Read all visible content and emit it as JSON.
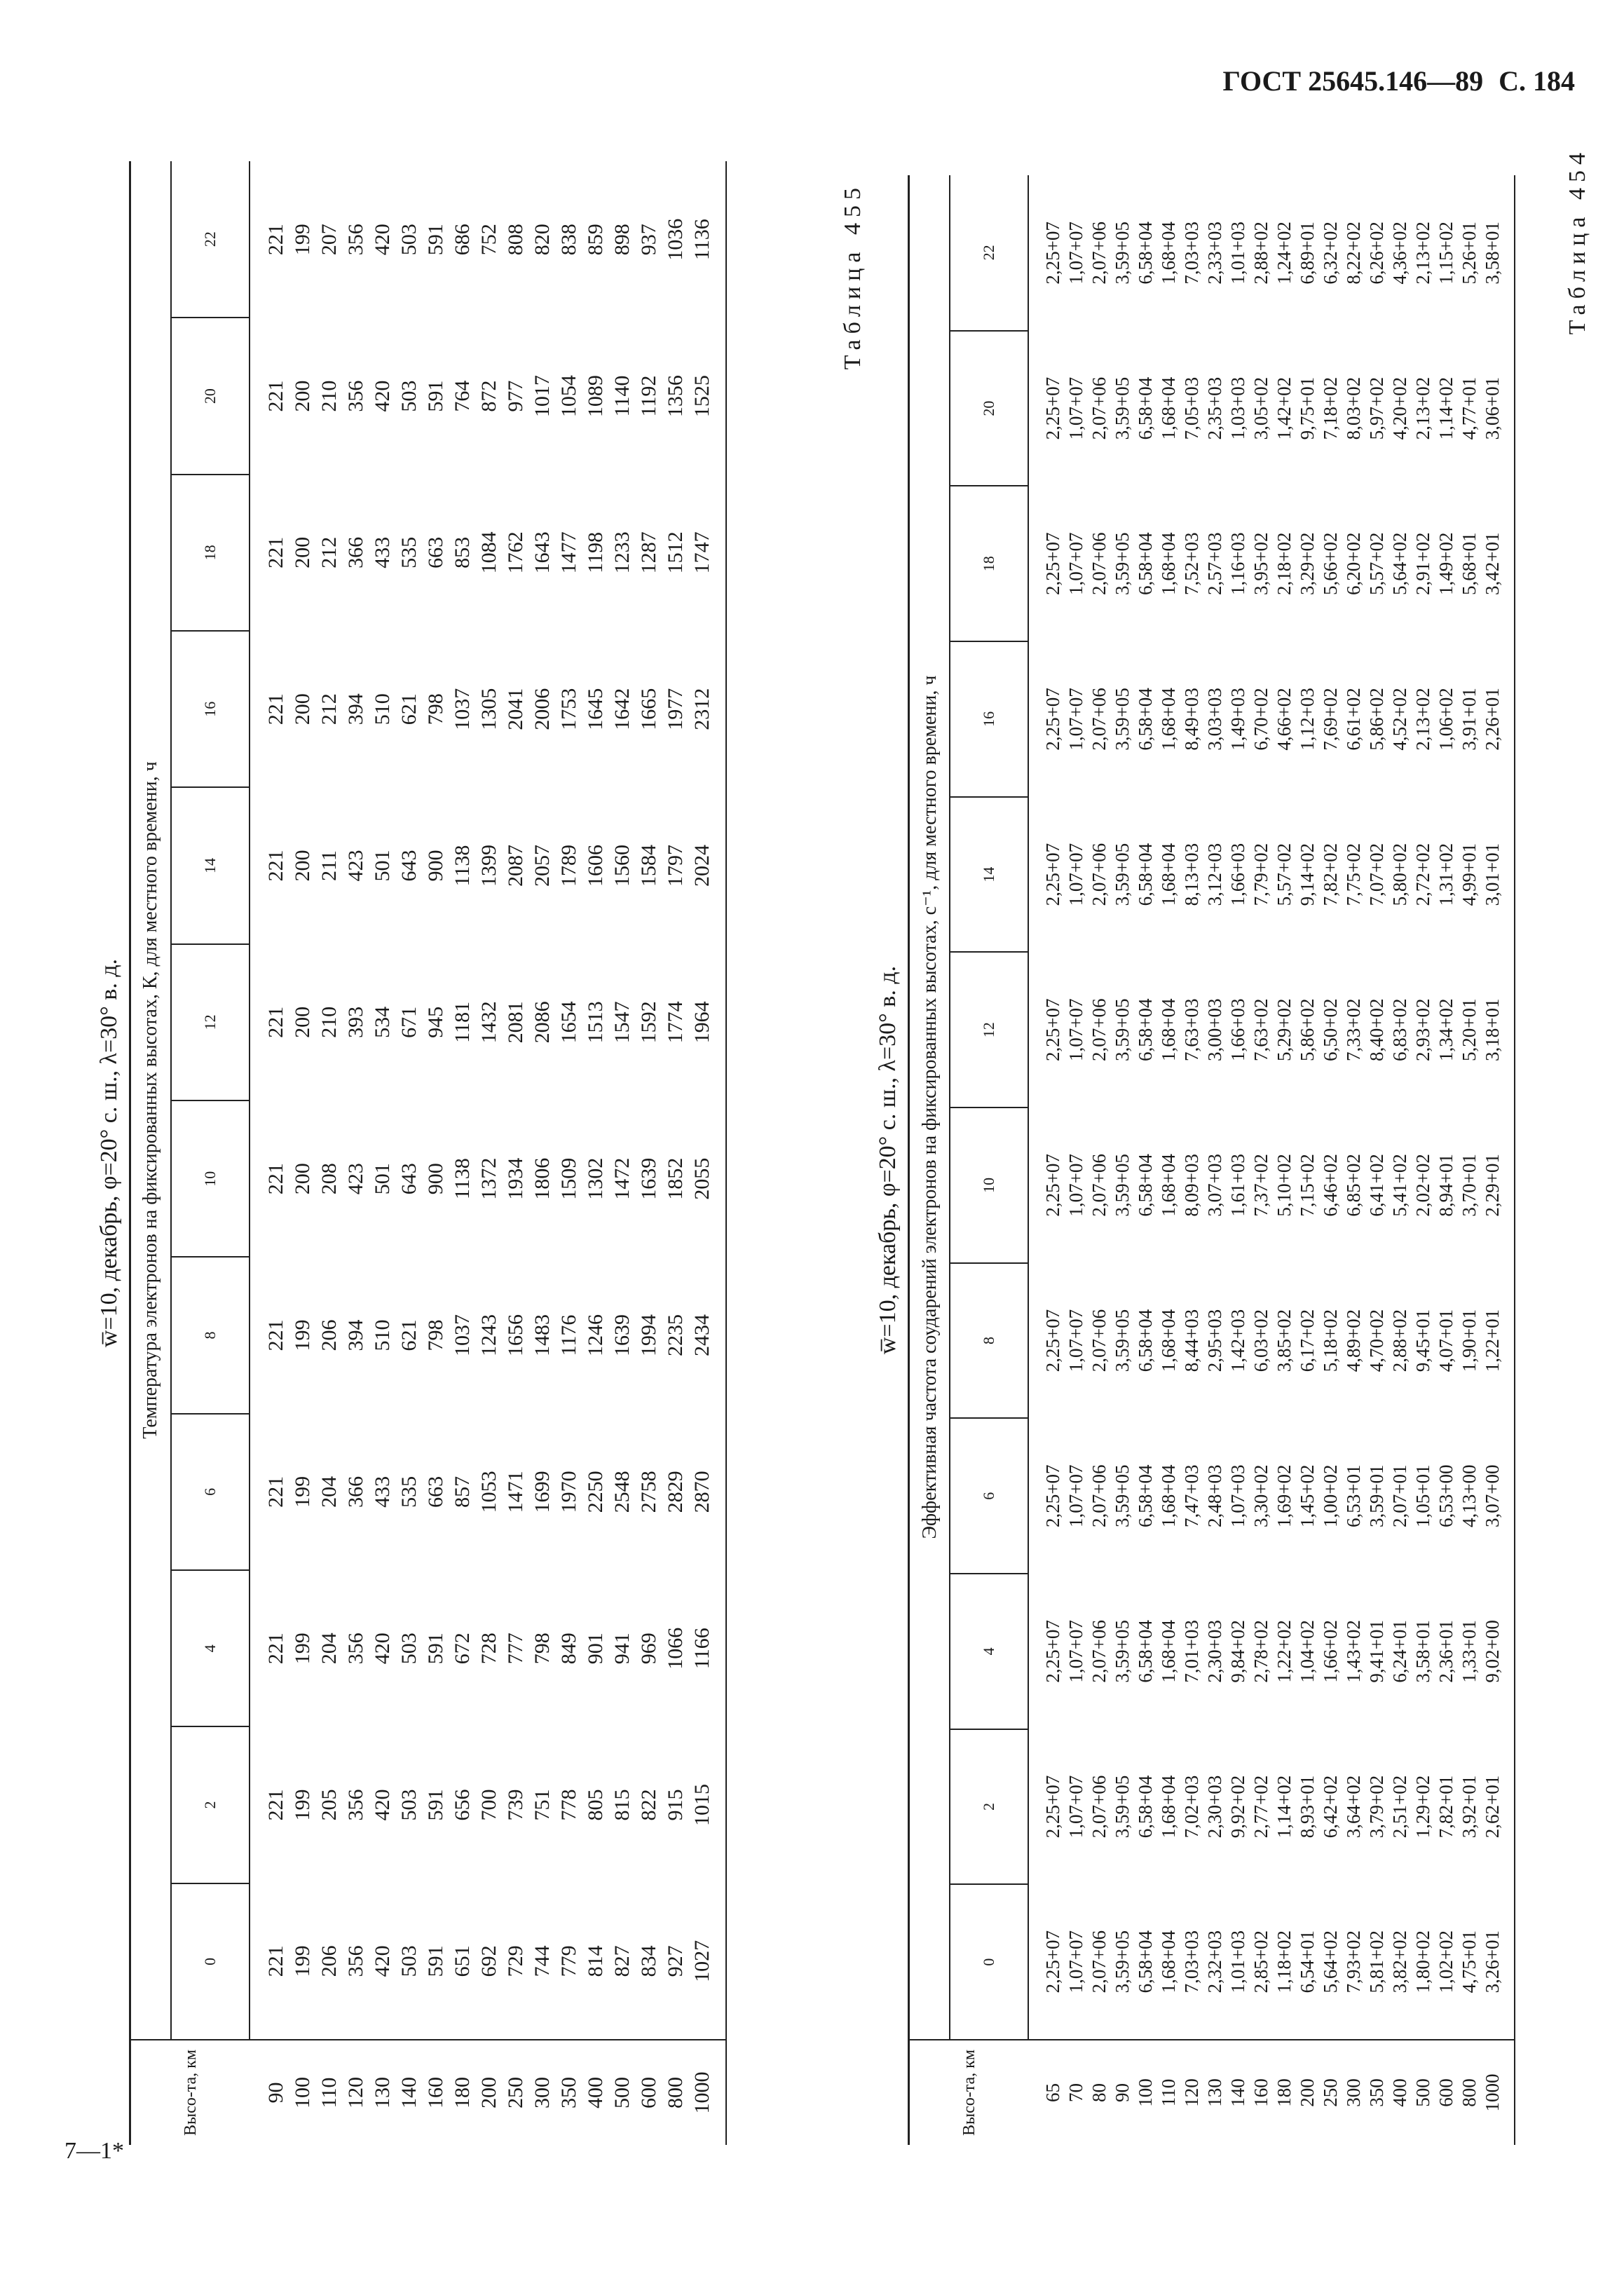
{
  "header": {
    "standard": "ГОСТ 25645.146—89",
    "page": "С. 184"
  },
  "footer": "7—1*",
  "tables": [
    {
      "label": "Таблица 454",
      "title": "w̅=10, декабрь, φ=20° с. ш., λ=30° в. д.",
      "row_header": "Высо-та, км",
      "column_group": "Температура электронов на фиксированных высотах, К, для местного времени, ч",
      "heights": [
        "90",
        "100",
        "110",
        "120",
        "130",
        "140",
        "160",
        "180",
        "200",
        "250",
        "300",
        "350",
        "400",
        "500",
        "600",
        "800",
        "1000"
      ],
      "columns": [
        {
          "hour": "0",
          "values": [
            221,
            199,
            206,
            356,
            420,
            503,
            591,
            651,
            692,
            729,
            744,
            779,
            814,
            827,
            834,
            927,
            1027
          ]
        },
        {
          "hour": "2",
          "values": [
            221,
            199,
            205,
            356,
            420,
            503,
            591,
            656,
            700,
            739,
            751,
            778,
            805,
            815,
            822,
            915,
            1015
          ]
        },
        {
          "hour": "4",
          "values": [
            221,
            199,
            204,
            356,
            420,
            503,
            591,
            672,
            728,
            777,
            798,
            849,
            901,
            941,
            969,
            1066,
            1166
          ]
        },
        {
          "hour": "6",
          "values": [
            221,
            199,
            204,
            366,
            433,
            535,
            663,
            857,
            1053,
            1471,
            1699,
            1970,
            2250,
            2548,
            2758,
            2829,
            2870
          ]
        },
        {
          "hour": "8",
          "values": [
            221,
            199,
            206,
            394,
            510,
            621,
            798,
            1037,
            1243,
            1656,
            1483,
            1176,
            1246,
            1639,
            1994,
            2235,
            2434
          ]
        },
        {
          "hour": "10",
          "values": [
            221,
            200,
            208,
            423,
            501,
            643,
            900,
            1138,
            1372,
            1934,
            1806,
            1509,
            1302,
            1472,
            1639,
            1852,
            2055
          ]
        },
        {
          "hour": "12",
          "values": [
            221,
            200,
            210,
            393,
            534,
            671,
            945,
            1181,
            1432,
            2081,
            2086,
            1654,
            1513,
            1547,
            1592,
            1774,
            1964
          ]
        },
        {
          "hour": "14",
          "values": [
            221,
            200,
            211,
            423,
            501,
            643,
            900,
            1138,
            1399,
            2087,
            2057,
            1789,
            1606,
            1560,
            1584,
            1797,
            2024
          ]
        },
        {
          "hour": "16",
          "values": [
            221,
            200,
            212,
            394,
            510,
            621,
            798,
            1037,
            1305,
            2041,
            2006,
            1753,
            1645,
            1642,
            1665,
            1977,
            2312
          ]
        },
        {
          "hour": "18",
          "values": [
            221,
            200,
            212,
            366,
            433,
            535,
            663,
            853,
            1084,
            1762,
            1643,
            1477,
            1198,
            1233,
            1287,
            1512,
            1747
          ]
        },
        {
          "hour": "20",
          "values": [
            221,
            200,
            210,
            356,
            420,
            503,
            591,
            764,
            872,
            977,
            1017,
            1054,
            1089,
            1140,
            1192,
            1356,
            1525
          ]
        },
        {
          "hour": "22",
          "values": [
            221,
            199,
            207,
            356,
            420,
            503,
            591,
            686,
            752,
            808,
            820,
            838,
            859,
            898,
            937,
            1036,
            1136
          ]
        }
      ]
    },
    {
      "label": "Таблица 455",
      "title": "w̅=10, декабрь, φ=20° с. ш., λ=30° в. д.",
      "row_header": "Высо-та, км",
      "column_group": "Эффективная частота соударений электронов на фиксированных высотах, с⁻¹, для местного времени, ч",
      "heights": [
        "65",
        "70",
        "80",
        "90",
        "100",
        "110",
        "120",
        "130",
        "140",
        "160",
        "180",
        "200",
        "250",
        "300",
        "350",
        "400",
        "500",
        "600",
        "800",
        "1000"
      ],
      "columns": [
        {
          "hour": "0",
          "values": [
            "2,25+07",
            "1,07+07",
            "2,07+06",
            "3,59+05",
            "6,58+04",
            "1,68+04",
            "7,03+03",
            "2,32+03",
            "1,01+03",
            "2,85+02",
            "1,18+02",
            "6,54+01",
            "5,64+02",
            "7,93+02",
            "5,81+02",
            "3,82+02",
            "1,80+02",
            "1,02+02",
            "4,75+01",
            "3,26+01"
          ]
        },
        {
          "hour": "2",
          "values": [
            "2,25+07",
            "1,07+07",
            "2,07+06",
            "3,59+05",
            "6,58+04",
            "1,68+04",
            "7,02+03",
            "2,30+03",
            "9,92+02",
            "2,77+02",
            "1,14+02",
            "8,93+01",
            "6,42+02",
            "3,64+02",
            "3,79+02",
            "2,51+02",
            "1,29+02",
            "7,82+01",
            "3,92+01",
            "2,62+01"
          ]
        },
        {
          "hour": "4",
          "values": [
            "2,25+07",
            "1,07+07",
            "2,07+06",
            "3,59+05",
            "6,58+04",
            "1,68+04",
            "7,01+03",
            "2,30+03",
            "9,84+02",
            "2,78+02",
            "1,22+02",
            "1,04+02",
            "1,66+02",
            "1,43+02",
            "9,41+01",
            "6,24+01",
            "3,58+01",
            "2,36+01",
            "1,33+01",
            "9,02+00"
          ]
        },
        {
          "hour": "6",
          "values": [
            "2,25+07",
            "1,07+07",
            "2,07+06",
            "3,59+05",
            "6,58+04",
            "1,68+04",
            "7,47+03",
            "2,48+03",
            "1,07+03",
            "3,30+02",
            "1,69+02",
            "1,45+02",
            "1,00+02",
            "6,53+01",
            "3,59+01",
            "2,07+01",
            "1,05+01",
            "6,53+00",
            "4,13+00",
            "3,07+00"
          ]
        },
        {
          "hour": "8",
          "values": [
            "2,25+07",
            "1,07+07",
            "2,07+06",
            "3,59+05",
            "6,58+04",
            "1,68+04",
            "8,44+03",
            "2,95+03",
            "1,42+03",
            "6,03+02",
            "3,85+02",
            "6,17+02",
            "5,18+02",
            "4,89+02",
            "4,70+02",
            "2,88+02",
            "9,45+01",
            "4,07+01",
            "1,90+01",
            "1,22+01"
          ]
        },
        {
          "hour": "10",
          "values": [
            "2,25+07",
            "1,07+07",
            "2,07+06",
            "3,59+05",
            "6,58+04",
            "1,68+04",
            "8,09+03",
            "3,07+03",
            "1,61+03",
            "7,37+02",
            "5,10+02",
            "7,15+02",
            "6,46+02",
            "6,85+02",
            "6,41+02",
            "5,41+02",
            "2,02+02",
            "8,94+01",
            "3,70+01",
            "2,29+01"
          ]
        },
        {
          "hour": "12",
          "values": [
            "2,25+07",
            "1,07+07",
            "2,07+06",
            "3,59+05",
            "6,58+04",
            "1,68+04",
            "7,63+03",
            "3,00+03",
            "1,66+03",
            "7,63+02",
            "5,29+02",
            "5,86+02",
            "6,50+02",
            "7,33+02",
            "8,40+02",
            "6,83+02",
            "2,93+02",
            "1,34+02",
            "5,20+01",
            "3,18+01"
          ]
        },
        {
          "hour": "14",
          "values": [
            "2,25+07",
            "1,07+07",
            "2,07+06",
            "3,59+05",
            "6,58+04",
            "1,68+04",
            "8,13+03",
            "3,12+03",
            "1,66+03",
            "7,79+02",
            "5,57+02",
            "9,14+02",
            "7,82+02",
            "7,75+02",
            "7,07+02",
            "5,80+02",
            "2,72+02",
            "1,31+02",
            "4,99+01",
            "3,01+01"
          ]
        },
        {
          "hour": "16",
          "values": [
            "2,25+07",
            "1,07+07",
            "2,07+06",
            "3,59+05",
            "6,58+04",
            "1,68+04",
            "8,49+03",
            "3,03+03",
            "1,49+03",
            "6,70+02",
            "4,66+02",
            "1,12+03",
            "7,69+02",
            "6,61+02",
            "5,86+02",
            "4,52+02",
            "2,13+02",
            "1,06+02",
            "3,91+01",
            "2,26+01"
          ]
        },
        {
          "hour": "18",
          "values": [
            "2,25+07",
            "1,07+07",
            "2,07+06",
            "3,59+05",
            "6,58+04",
            "1,68+04",
            "7,52+03",
            "2,57+03",
            "1,16+03",
            "3,95+02",
            "2,18+02",
            "3,29+02",
            "5,66+02",
            "6,20+02",
            "5,57+02",
            "5,64+02",
            "2,91+02",
            "1,49+02",
            "5,68+01",
            "3,42+01"
          ]
        },
        {
          "hour": "20",
          "values": [
            "2,25+07",
            "1,07+07",
            "2,07+06",
            "3,59+05",
            "6,58+04",
            "1,68+04",
            "7,05+03",
            "2,35+03",
            "1,03+03",
            "3,05+02",
            "1,42+02",
            "9,75+01",
            "7,18+02",
            "8,03+02",
            "5,97+02",
            "4,20+02",
            "2,13+02",
            "1,14+02",
            "4,77+01",
            "3,06+01"
          ]
        },
        {
          "hour": "22",
          "values": [
            "2,25+07",
            "1,07+07",
            "2,07+06",
            "3,59+05",
            "6,58+04",
            "1,68+04",
            "7,03+03",
            "2,33+03",
            "1,01+03",
            "2,88+02",
            "1,24+02",
            "6,89+01",
            "6,32+02",
            "8,22+02",
            "6,26+02",
            "4,36+02",
            "2,13+02",
            "1,15+02",
            "5,26+01",
            "3,58+01"
          ]
        }
      ]
    }
  ]
}
